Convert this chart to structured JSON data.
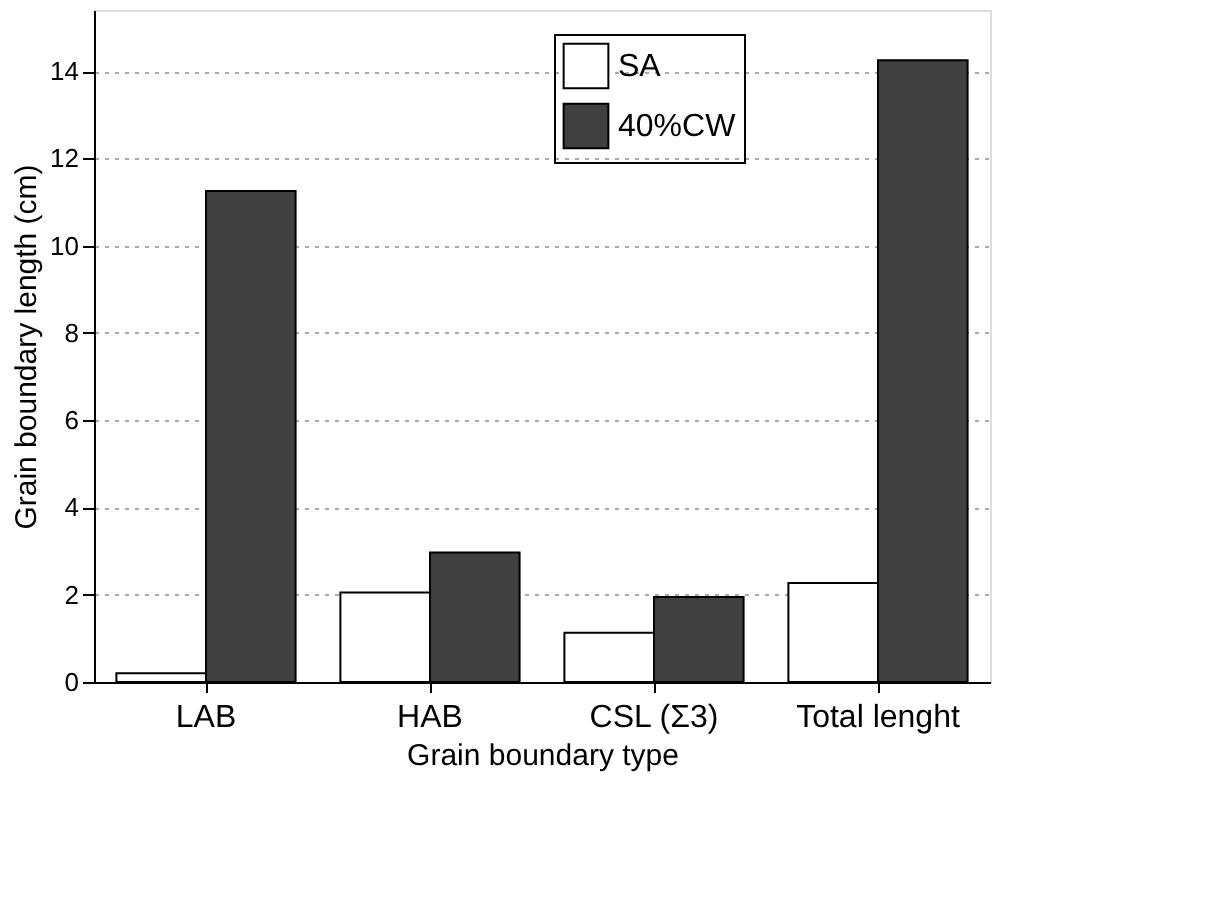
{
  "chart_data": {
    "type": "bar",
    "xlabel": "Grain boundary type",
    "ylabel": "Grain boundary length (cm)",
    "categories": [
      "LAB",
      "HAB",
      "CSL (Σ3)",
      "Total lenght"
    ],
    "series": [
      {
        "name": "SA",
        "color": "#ffffff",
        "values": [
          0.2,
          2.05,
          1.13,
          2.27
        ]
      },
      {
        "name": "40%CW",
        "color": "#404040",
        "values": [
          11.25,
          2.97,
          1.95,
          14.25
        ]
      }
    ],
    "ylim": [
      0,
      15.4
    ],
    "yticks": [
      0,
      2,
      4,
      6,
      8,
      10,
      12,
      14
    ],
    "grid": "y",
    "legend": "top"
  }
}
